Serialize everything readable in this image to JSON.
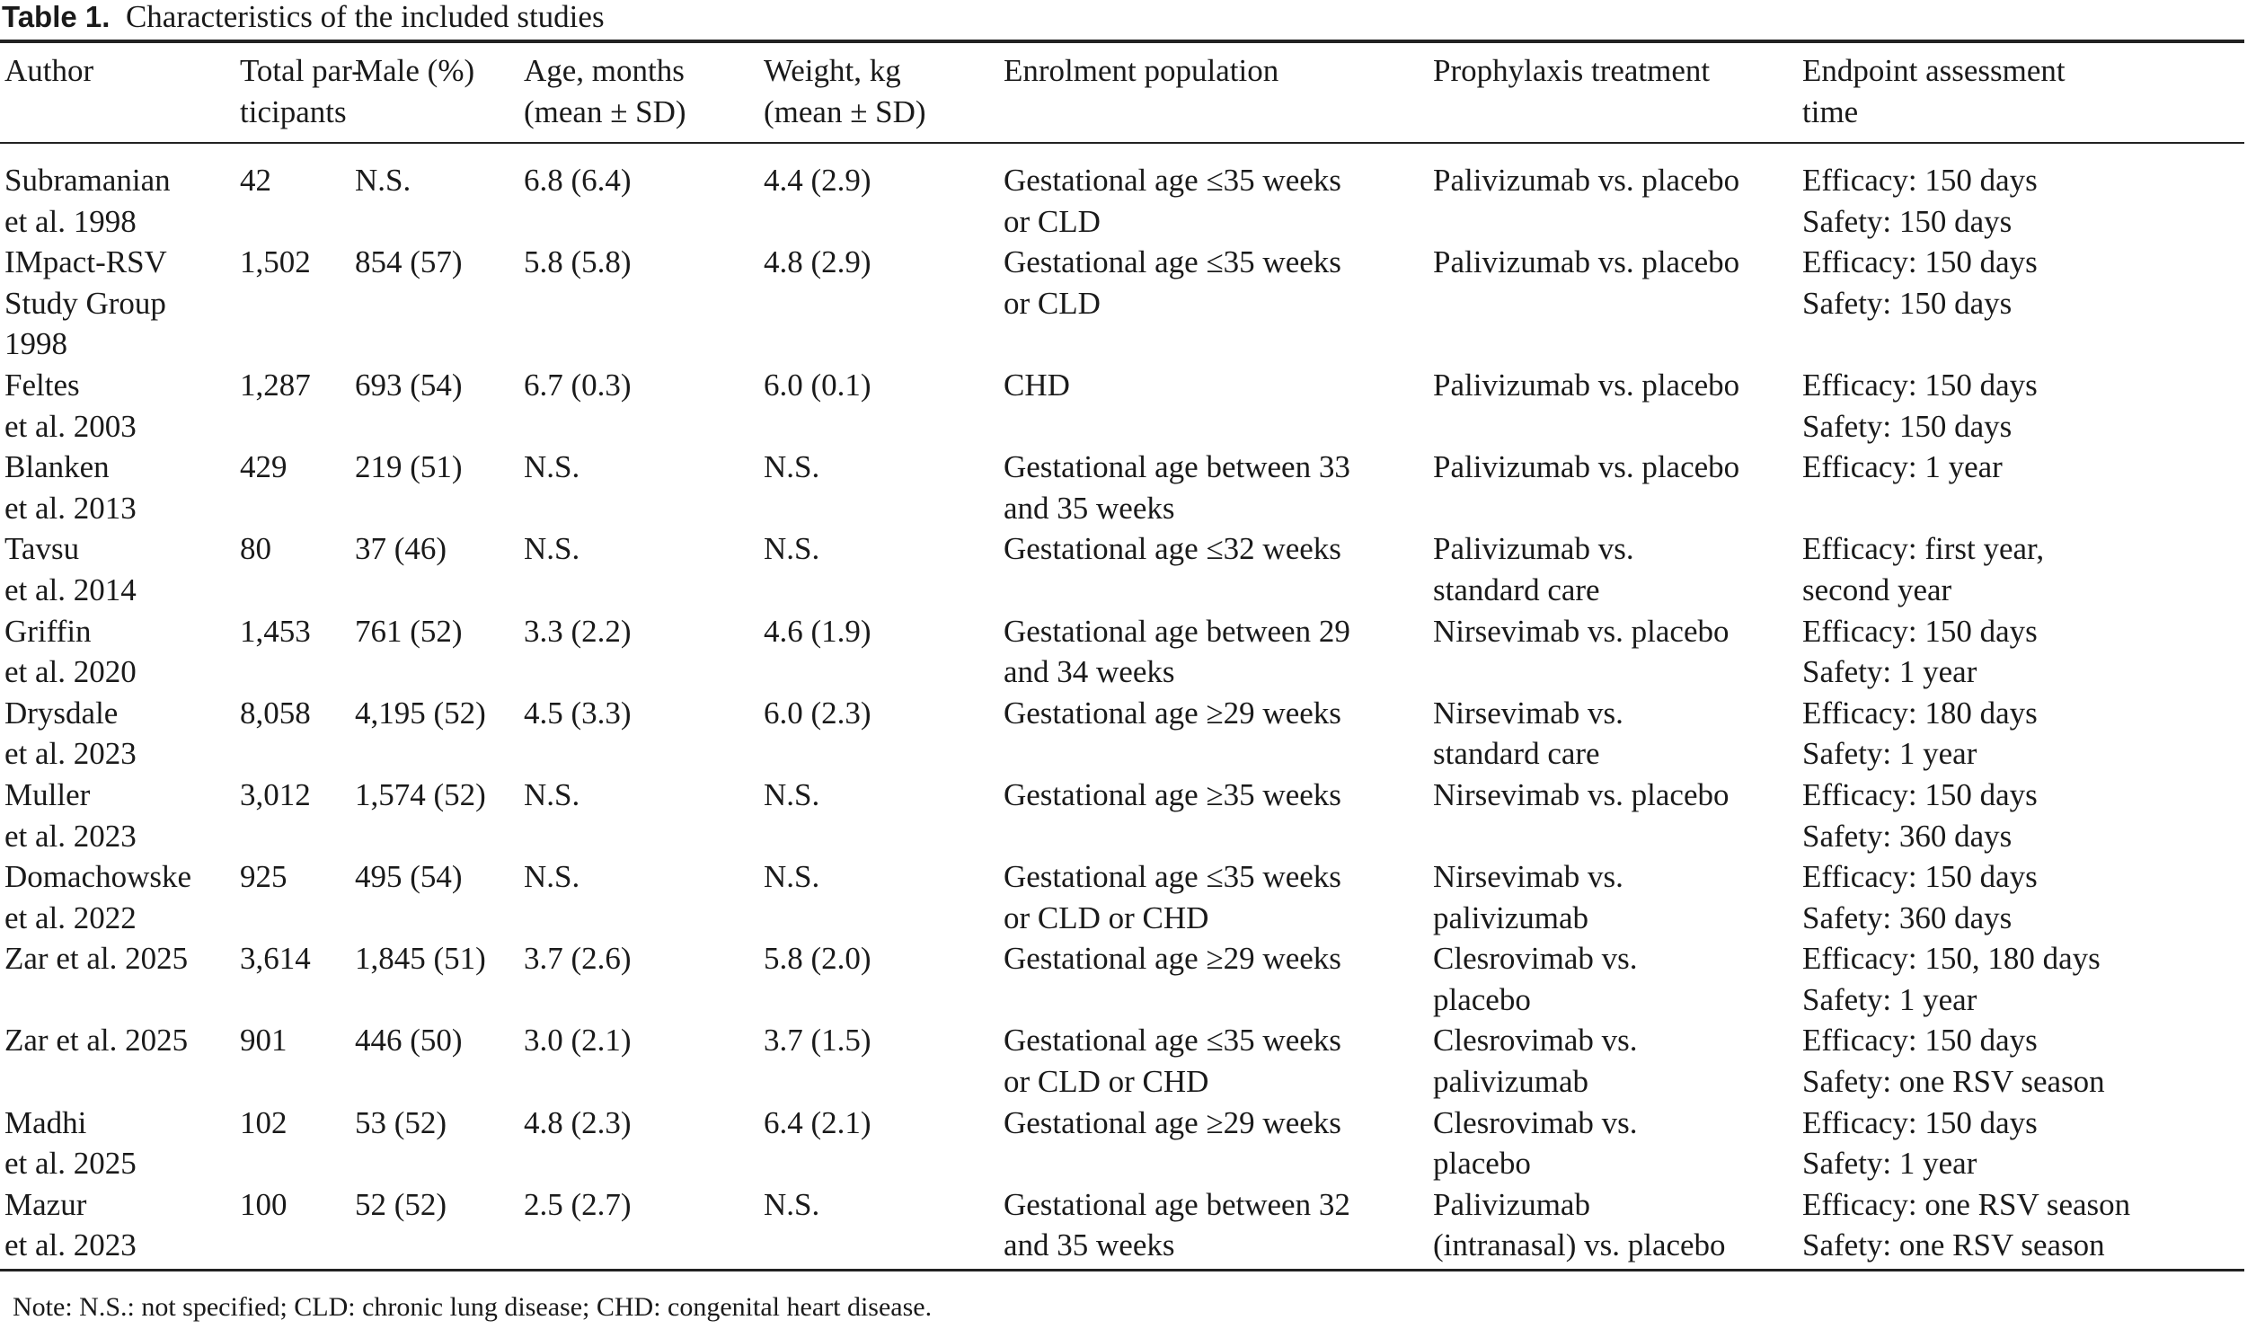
{
  "caption": {
    "label": "Table 1.",
    "text": "Characteristics of the included studies"
  },
  "headers": [
    [
      "Author"
    ],
    [
      "Total par-",
      "ticipants"
    ],
    [
      "Male (%)"
    ],
    [
      "Age, months",
      "(mean ± SD)"
    ],
    [
      "Weight, kg",
      "(mean ± SD)"
    ],
    [
      "Enrolment population"
    ],
    [
      "Prophylaxis treatment"
    ],
    [
      "Endpoint assessment",
      "time"
    ]
  ],
  "rows": [
    [
      [
        "Subramanian",
        "et al. 1998"
      ],
      [
        "42"
      ],
      [
        "N.S."
      ],
      [
        "6.8 (6.4)"
      ],
      [
        "4.4 (2.9)"
      ],
      [
        "Gestational age ≤35 weeks",
        "or CLD"
      ],
      [
        "Palivizumab vs. placebo"
      ],
      [
        "Efficacy: 150 days",
        "Safety: 150 days"
      ]
    ],
    [
      [
        "IMpact-RSV",
        "Study Group",
        "1998"
      ],
      [
        "1,502"
      ],
      [
        "854 (57)"
      ],
      [
        "5.8 (5.8)"
      ],
      [
        "4.8 (2.9)"
      ],
      [
        "Gestational age ≤35 weeks",
        "or CLD"
      ],
      [
        "Palivizumab vs. placebo"
      ],
      [
        "Efficacy: 150 days",
        "Safety: 150 days"
      ]
    ],
    [
      [
        "Feltes",
        "et al. 2003"
      ],
      [
        "1,287"
      ],
      [
        "693 (54)"
      ],
      [
        "6.7 (0.3)"
      ],
      [
        "6.0 (0.1)"
      ],
      [
        "CHD"
      ],
      [
        "Palivizumab vs. placebo"
      ],
      [
        "Efficacy: 150 days",
        "Safety: 150 days"
      ]
    ],
    [
      [
        "Blanken",
        "et al. 2013"
      ],
      [
        "429"
      ],
      [
        "219 (51)"
      ],
      [
        "N.S."
      ],
      [
        "N.S."
      ],
      [
        "Gestational age between 33",
        "and 35 weeks"
      ],
      [
        "Palivizumab vs. placebo"
      ],
      [
        "Efficacy: 1 year"
      ]
    ],
    [
      [
        "Tavsu",
        "et al. 2014"
      ],
      [
        "80"
      ],
      [
        "37 (46)"
      ],
      [
        "N.S."
      ],
      [
        "N.S."
      ],
      [
        "Gestational age ≤32 weeks"
      ],
      [
        "Palivizumab vs.",
        "standard care"
      ],
      [
        "Efficacy: first year,",
        "second year"
      ]
    ],
    [
      [
        "Griffin",
        "et al. 2020"
      ],
      [
        "1,453"
      ],
      [
        "761 (52)"
      ],
      [
        "3.3 (2.2)"
      ],
      [
        "4.6 (1.9)"
      ],
      [
        "Gestational age between 29",
        "and 34 weeks"
      ],
      [
        "Nirsevimab vs. placebo"
      ],
      [
        "Efficacy: 150 days",
        "Safety: 1 year"
      ]
    ],
    [
      [
        "Drysdale",
        "et al. 2023"
      ],
      [
        "8,058"
      ],
      [
        "4,195 (52)"
      ],
      [
        "4.5 (3.3)"
      ],
      [
        "6.0 (2.3)"
      ],
      [
        "Gestational age ≥29 weeks"
      ],
      [
        "Nirsevimab vs.",
        "standard care"
      ],
      [
        "Efficacy: 180 days",
        "Safety: 1 year"
      ]
    ],
    [
      [
        "Muller",
        "et al. 2023"
      ],
      [
        "3,012"
      ],
      [
        "1,574 (52)"
      ],
      [
        "N.S."
      ],
      [
        "N.S."
      ],
      [
        "Gestational age ≥35 weeks"
      ],
      [
        "Nirsevimab vs. placebo"
      ],
      [
        "Efficacy: 150 days",
        "Safety: 360 days"
      ]
    ],
    [
      [
        "Domachowske",
        "et al. 2022"
      ],
      [
        "925"
      ],
      [
        "495 (54)"
      ],
      [
        "N.S."
      ],
      [
        "N.S."
      ],
      [
        "Gestational age ≤35 weeks",
        "or CLD or CHD"
      ],
      [
        "Nirsevimab vs.",
        "palivizumab"
      ],
      [
        "Efficacy: 150 days",
        "Safety: 360 days"
      ]
    ],
    [
      [
        "Zar et al. 2025"
      ],
      [
        "3,614"
      ],
      [
        "1,845 (51)"
      ],
      [
        "3.7 (2.6)"
      ],
      [
        "5.8 (2.0)"
      ],
      [
        "Gestational age ≥29 weeks"
      ],
      [
        "Clesrovimab vs.",
        "placebo"
      ],
      [
        "Efficacy: 150, 180 days",
        "Safety: 1 year"
      ]
    ],
    [
      [
        "Zar et al. 2025"
      ],
      [
        "901"
      ],
      [
        "446 (50)"
      ],
      [
        "3.0 (2.1)"
      ],
      [
        "3.7 (1.5)"
      ],
      [
        "Gestational age ≤35 weeks",
        "or CLD or CHD"
      ],
      [
        "Clesrovimab vs.",
        "palivizumab"
      ],
      [
        "Efficacy: 150 days",
        "Safety: one RSV season"
      ]
    ],
    [
      [
        "Madhi",
        "et al. 2025"
      ],
      [
        "102"
      ],
      [
        "53 (52)"
      ],
      [
        "4.8 (2.3)"
      ],
      [
        "6.4 (2.1)"
      ],
      [
        "Gestational age ≥29 weeks"
      ],
      [
        "Clesrovimab vs.",
        "placebo"
      ],
      [
        "Efficacy: 150 days",
        "Safety: 1 year"
      ]
    ],
    [
      [
        "Mazur",
        "et al. 2023"
      ],
      [
        "100"
      ],
      [
        "52 (52)"
      ],
      [
        "2.5 (2.7)"
      ],
      [
        "N.S."
      ],
      [
        "Gestational age between 32",
        "and 35 weeks"
      ],
      [
        "Palivizumab",
        "(intranasal) vs. placebo"
      ],
      [
        "Efficacy: one RSV season",
        "Safety: one RSV season"
      ]
    ]
  ],
  "note": "Note: N.S.: not specified; CLD: chronic lung disease; CHD: congenital heart disease."
}
